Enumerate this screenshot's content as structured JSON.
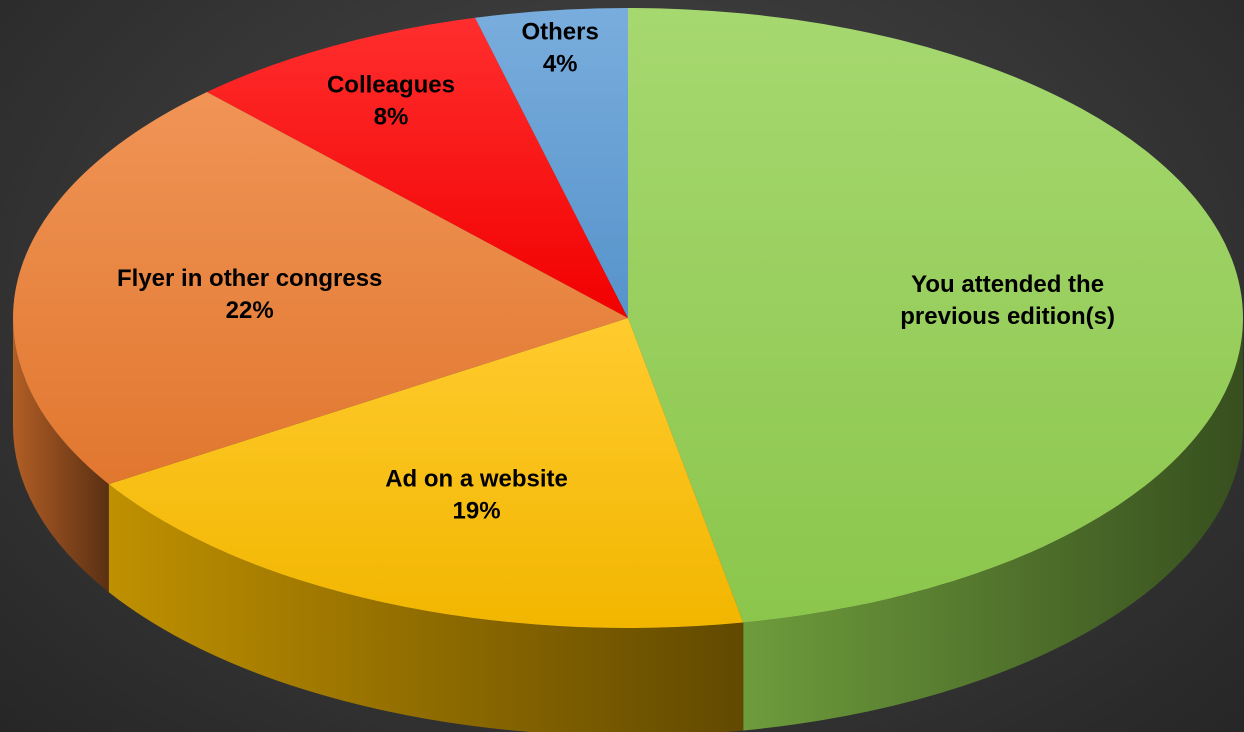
{
  "chart_data": {
    "type": "pie",
    "title": "",
    "series": [
      {
        "label": "You attended the previous edition(s)",
        "label_lines": [
          "You attended the",
          "previous edition(s)"
        ],
        "value_text": "",
        "value": 47,
        "color": "#92D050"
      },
      {
        "label": "Ad on a website",
        "label_lines": [
          "Ad on a website"
        ],
        "value_text": "19%",
        "value": 19,
        "color": "#FFC000"
      },
      {
        "label": "Flyer in other congress",
        "label_lines": [
          "Flyer in other congress"
        ],
        "value_text": "22%",
        "value": 22,
        "color": "#ED7D31"
      },
      {
        "label": "Colleagues",
        "label_lines": [
          "Colleagues"
        ],
        "value_text": "8%",
        "value": 8,
        "color": "#FF0000"
      },
      {
        "label": "Others",
        "label_lines": [
          "Others"
        ],
        "value_text": "4%",
        "value": 4,
        "color": "#5B9BD5"
      }
    ],
    "legend": "none",
    "style": "3d-pie"
  }
}
